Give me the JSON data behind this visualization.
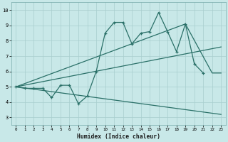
{
  "xlabel": "Humidex (Indice chaleur)",
  "xlim": [
    -0.5,
    23.5
  ],
  "ylim": [
    2.5,
    10.5
  ],
  "xticks": [
    0,
    1,
    2,
    3,
    4,
    5,
    6,
    7,
    8,
    9,
    10,
    11,
    12,
    13,
    14,
    15,
    16,
    17,
    18,
    19,
    20,
    21,
    22,
    23
  ],
  "yticks": [
    3,
    4,
    5,
    6,
    7,
    8,
    9,
    10
  ],
  "bg_color": "#c8e8e8",
  "grid_color": "#a8cece",
  "line_color": "#2a7068",
  "line1_x": [
    0,
    1,
    2,
    3,
    4,
    5,
    6,
    7,
    8,
    9,
    10,
    11,
    12,
    13,
    14,
    15,
    16,
    17,
    18,
    19,
    20,
    21
  ],
  "line1_y": [
    5.0,
    4.9,
    4.9,
    4.9,
    4.3,
    5.1,
    5.1,
    3.9,
    4.4,
    6.0,
    8.5,
    9.2,
    9.2,
    7.8,
    8.5,
    8.6,
    9.85,
    8.6,
    7.3,
    9.1,
    6.5,
    5.9
  ],
  "line2_x": [
    0,
    23
  ],
  "line2_y": [
    5.0,
    7.6
  ],
  "line3_x": [
    0,
    19,
    22,
    23
  ],
  "line3_y": [
    5.0,
    9.1,
    5.9,
    5.9
  ],
  "line4_x": [
    0,
    23
  ],
  "line4_y": [
    5.0,
    3.2
  ]
}
